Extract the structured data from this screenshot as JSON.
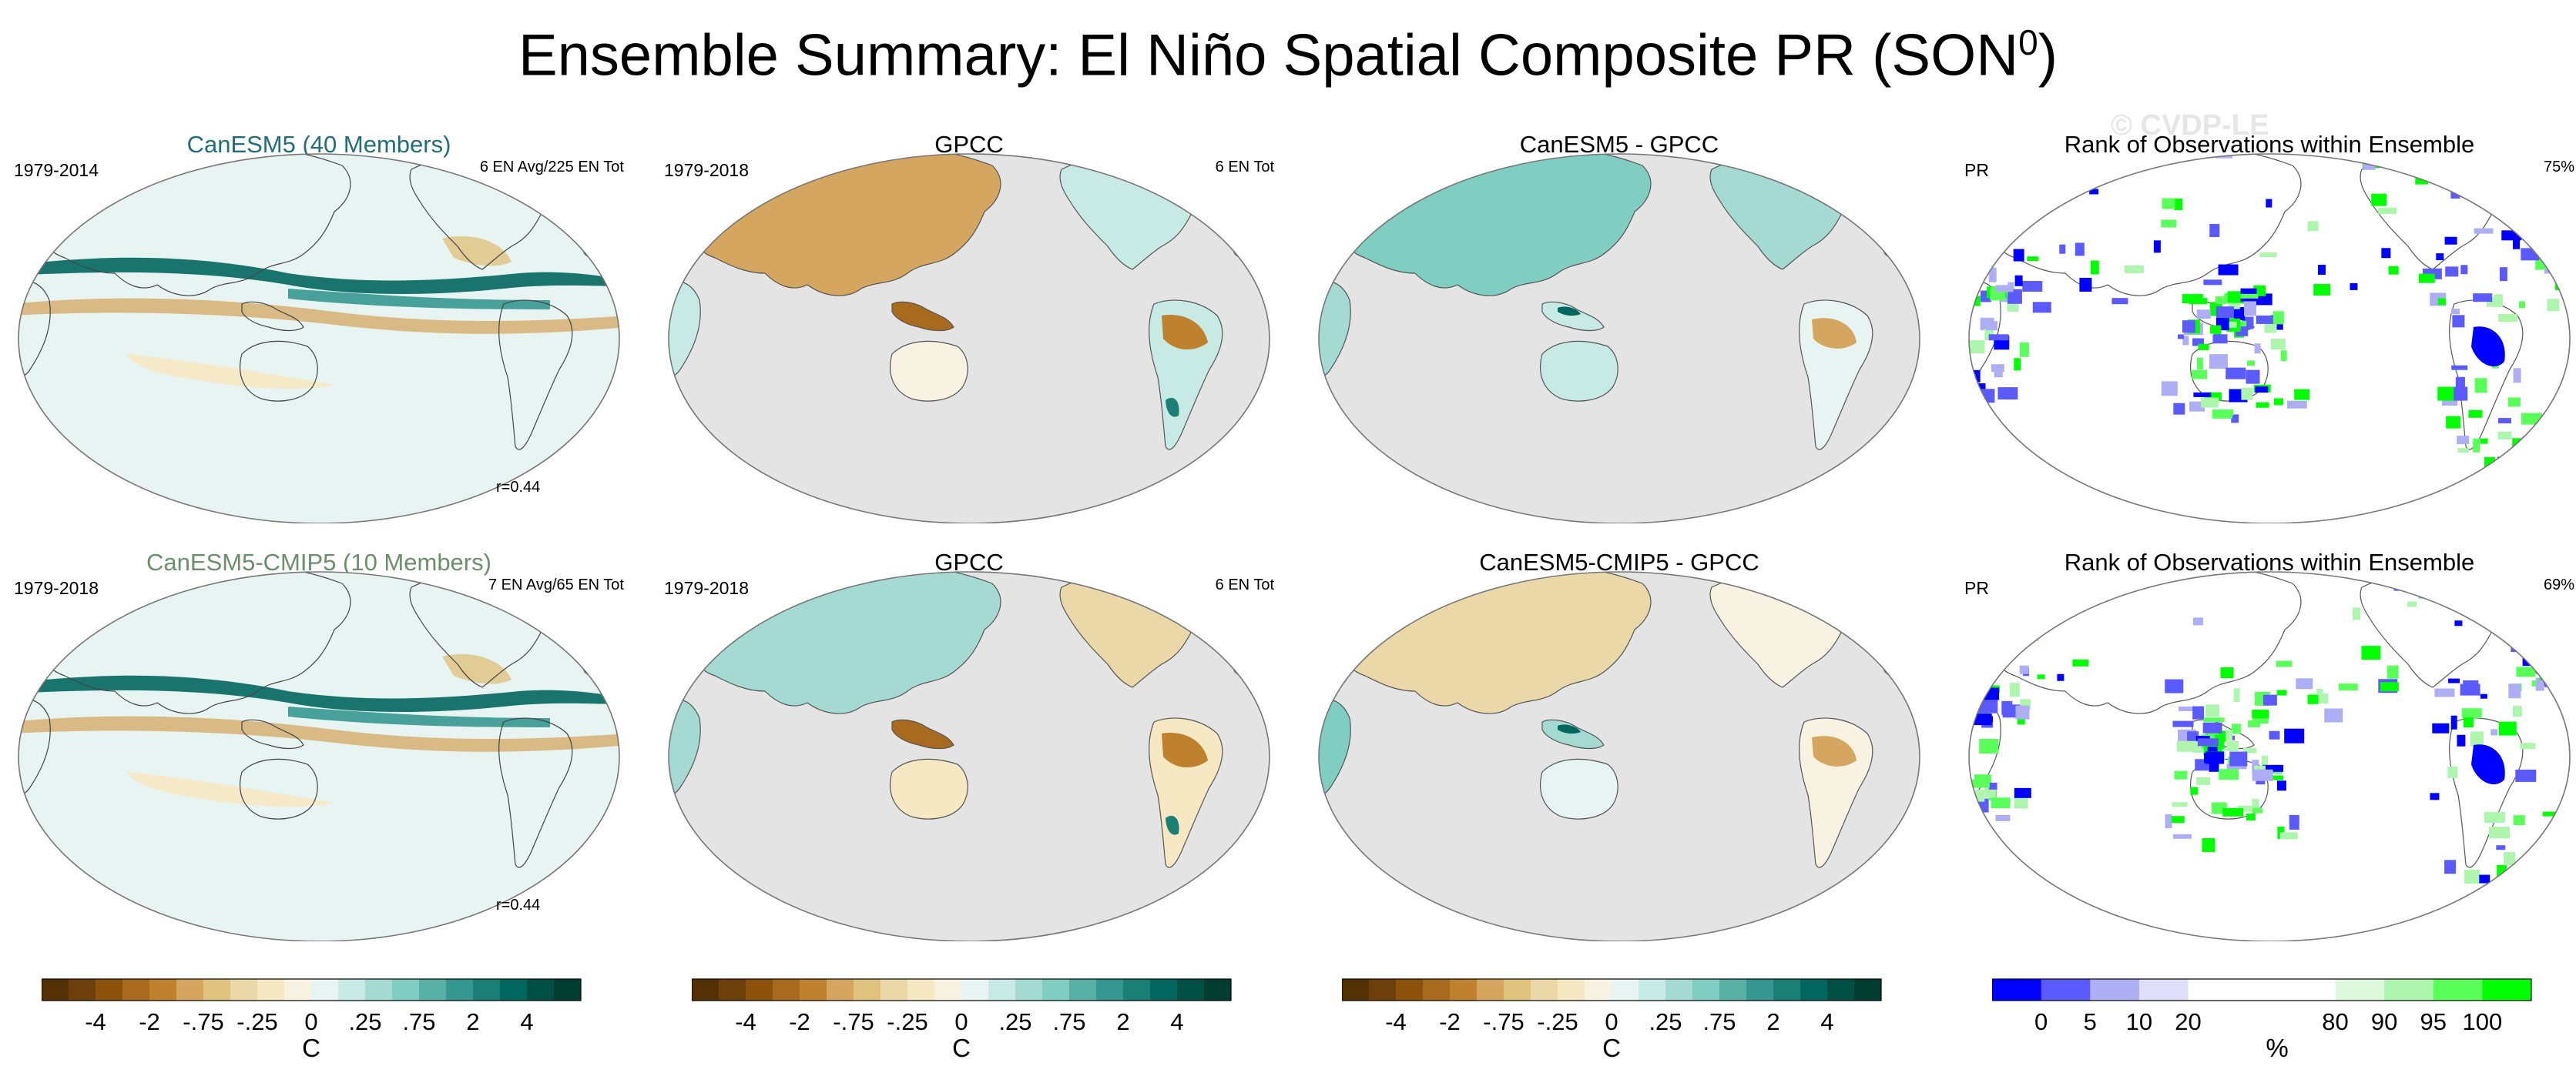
{
  "title": {
    "main": "Ensemble Summary: El Niño Spatial Composite PR (SON",
    "sup": "0",
    "tail": ")"
  },
  "watermark": "© CVDP-LE",
  "panels": [
    {
      "title": "CanESM5 (40 Members)",
      "left": "1979-2014",
      "right": "6 EN Avg/225 EN Tot",
      "corr": "r=0.44"
    },
    {
      "title": "GPCC",
      "left": "1979-2018",
      "right": "6 EN Tot"
    },
    {
      "title": "CanESM5 - GPCC"
    },
    {
      "title": "Rank of Observations within Ensemble",
      "left": "PR",
      "right": "75%"
    },
    {
      "title": "CanESM5-CMIP5 (10 Members)",
      "left": "1979-2018",
      "right": "7 EN Avg/65 EN Tot",
      "corr": "r=0.44"
    },
    {
      "title": "GPCC",
      "left": "1979-2018",
      "right": "6 EN Tot"
    },
    {
      "title": "CanESM5-CMIP5 - GPCC"
    },
    {
      "title": "Rank of Observations within Ensemble",
      "left": "PR",
      "right": "69%"
    }
  ],
  "colorbars": {
    "precip": {
      "labels": [
        "-4",
        "-2",
        "-.75",
        "-.25",
        "0",
        ".25",
        ".75",
        "2",
        "4"
      ],
      "unit": "C",
      "colors": [
        "#543005",
        "#6d3f0a",
        "#8c510a",
        "#a86a1f",
        "#bf812d",
        "#d4a65f",
        "#dfc27d",
        "#ebd8a8",
        "#f6e8c3",
        "#f8f2e3",
        "#e8f4f2",
        "#c7eae5",
        "#a4dad2",
        "#80cdc1",
        "#58b0a5",
        "#35978f",
        "#1c7f76",
        "#01665e",
        "#004f45",
        "#003c30"
      ]
    },
    "rank": {
      "labels": [
        "0",
        "5",
        "10",
        "20",
        "80",
        "90",
        "95",
        "100"
      ],
      "unit": "%",
      "colors": [
        "#0000ff",
        "#5a5aff",
        "#aeaef5",
        "#dedef8",
        "#ffffff",
        "#ffffff",
        "#ffffff",
        "#ddf8dd",
        "#aef5ae",
        "#5aff5a",
        "#00ff00"
      ]
    }
  }
}
